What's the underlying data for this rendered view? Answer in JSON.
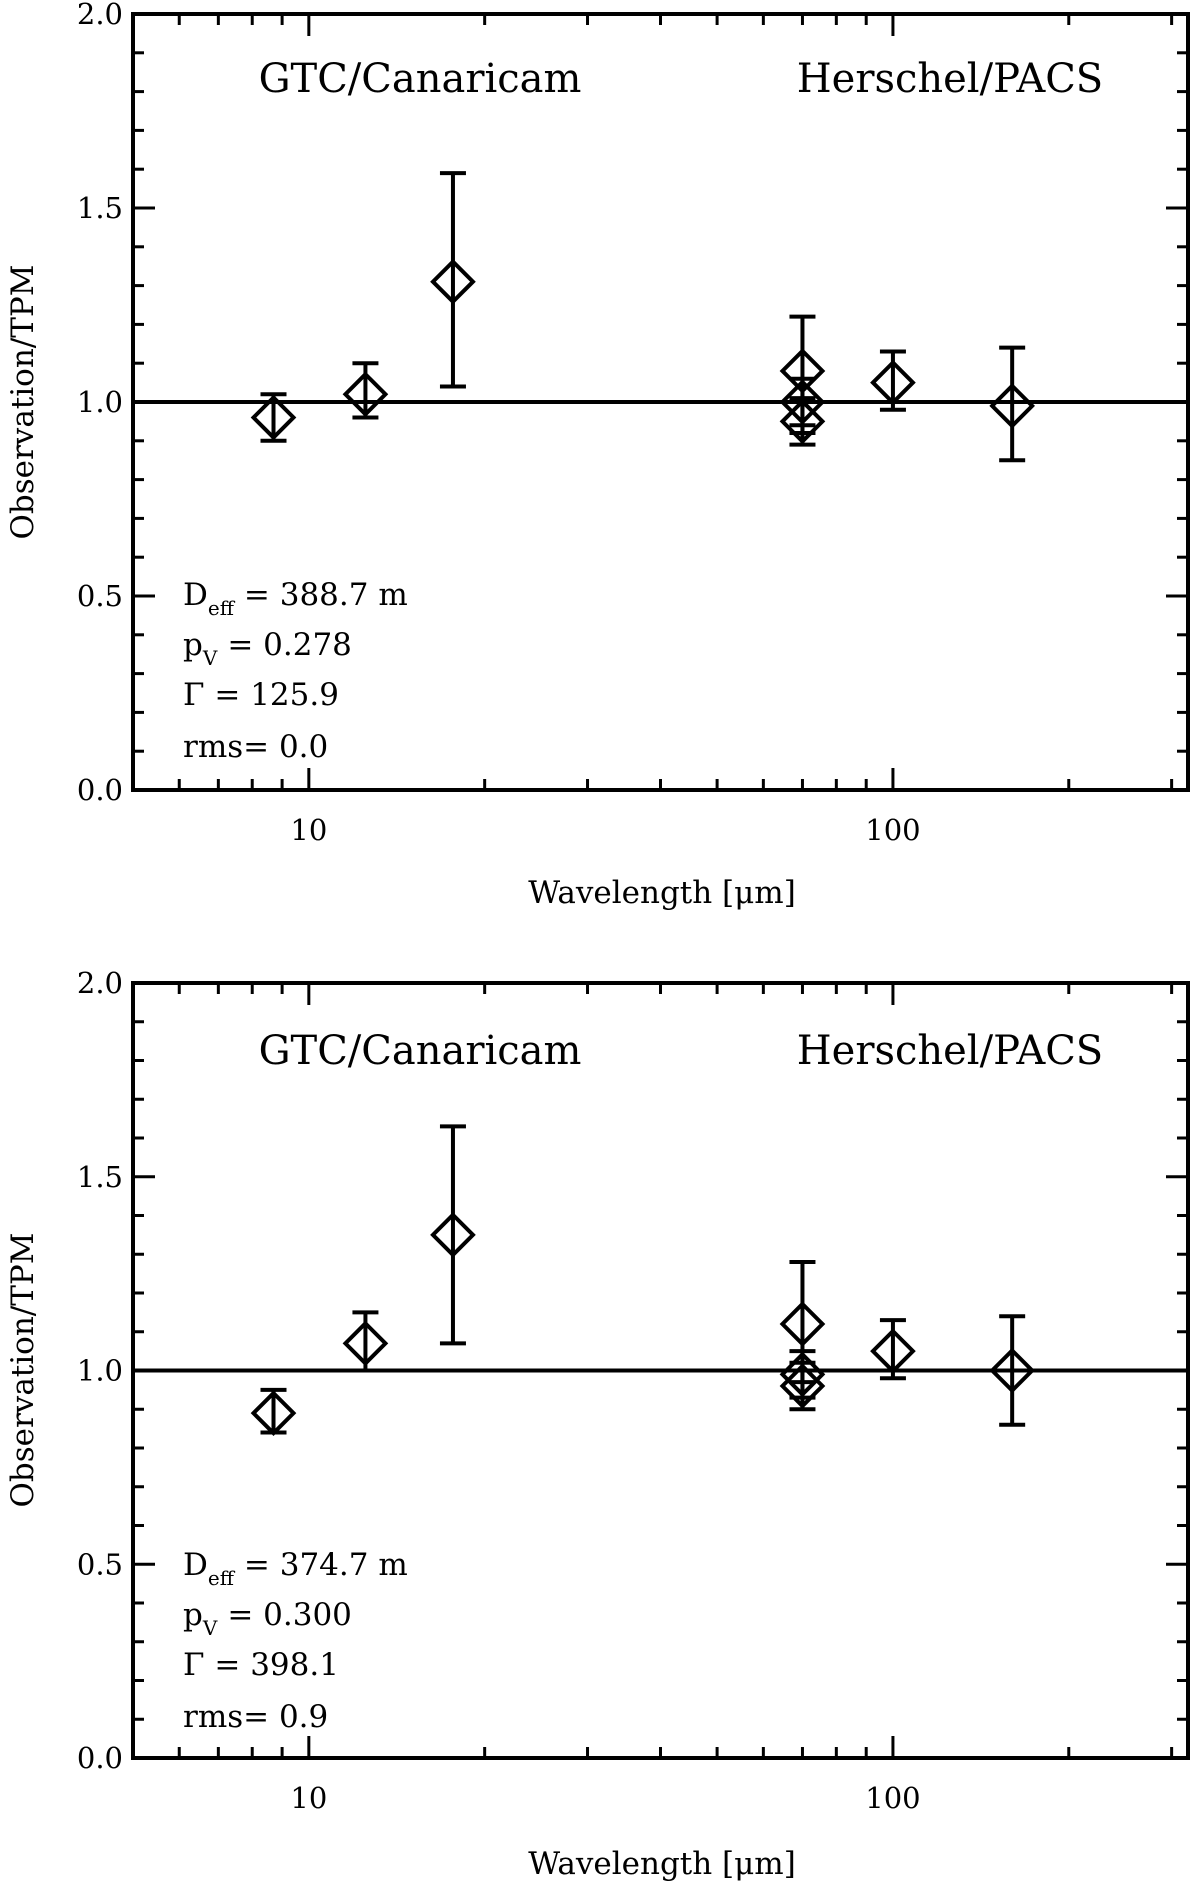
{
  "chart_data": [
    {
      "type": "scatter",
      "xscale": "log",
      "xlim": [
        5,
        320
      ],
      "ylim": [
        0.0,
        2.0
      ],
      "xlabel": "Wavelength [μm]",
      "ylabel": "Observation/TPM",
      "xticks": [
        10,
        100
      ],
      "xtick_labels": [
        "10",
        "100"
      ],
      "yticks": [
        0.0,
        0.5,
        1.0,
        1.5,
        2.0
      ],
      "ytick_labels": [
        "0.0",
        "0.5",
        "1.0",
        "1.5",
        "2.0"
      ],
      "reference_line": 1.0,
      "annotations": [
        "GTC/Canaricam",
        "Herschel/PACS"
      ],
      "params": {
        "d_eff": "= 388.7 m",
        "p_v": "= 0.278",
        "gamma": "Γ = 125.9",
        "rms": "rms= 0.0"
      },
      "series": [
        {
          "name": "Observation/TPM",
          "marker": "diamond",
          "points": [
            {
              "x": 8.7,
              "y": 0.96,
              "ylo": 0.9,
              "yhi": 1.02
            },
            {
              "x": 12.5,
              "y": 1.02,
              "ylo": 0.96,
              "yhi": 1.1
            },
            {
              "x": 17.65,
              "y": 1.31,
              "ylo": 1.04,
              "yhi": 1.59
            },
            {
              "x": 70,
              "y": 1.08,
              "ylo": 0.94,
              "yhi": 1.22
            },
            {
              "x": 70,
              "y": 1.0,
              "ylo": 0.92,
              "yhi": 1.06
            },
            {
              "x": 70,
              "y": 0.95,
              "ylo": 0.89,
              "yhi": 1.01
            },
            {
              "x": 100,
              "y": 1.05,
              "ylo": 0.98,
              "yhi": 1.13
            },
            {
              "x": 160,
              "y": 0.99,
              "ylo": 0.85,
              "yhi": 1.14
            }
          ]
        }
      ]
    },
    {
      "type": "scatter",
      "xscale": "log",
      "xlim": [
        5,
        320
      ],
      "ylim": [
        0.0,
        2.0
      ],
      "xlabel": "Wavelength [μm]",
      "ylabel": "Observation/TPM",
      "xticks": [
        10,
        100
      ],
      "xtick_labels": [
        "10",
        "100"
      ],
      "yticks": [
        0.0,
        0.5,
        1.0,
        1.5,
        2.0
      ],
      "ytick_labels": [
        "0.0",
        "0.5",
        "1.0",
        "1.5",
        "2.0"
      ],
      "reference_line": 1.0,
      "annotations": [
        "GTC/Canaricam",
        "Herschel/PACS"
      ],
      "params": {
        "d_eff": "= 374.7 m",
        "p_v": "= 0.300",
        "gamma": "Γ = 398.1",
        "rms": "rms= 0.9"
      },
      "series": [
        {
          "name": "Observation/TPM",
          "marker": "diamond",
          "points": [
            {
              "x": 8.7,
              "y": 0.89,
              "ylo": 0.84,
              "yhi": 0.95
            },
            {
              "x": 12.5,
              "y": 1.07,
              "ylo": 1.0,
              "yhi": 1.15
            },
            {
              "x": 17.65,
              "y": 1.35,
              "ylo": 1.07,
              "yhi": 1.63
            },
            {
              "x": 70,
              "y": 1.12,
              "ylo": 0.97,
              "yhi": 1.28
            },
            {
              "x": 70,
              "y": 0.99,
              "ylo": 0.93,
              "yhi": 1.05
            },
            {
              "x": 70,
              "y": 0.96,
              "ylo": 0.9,
              "yhi": 1.02
            },
            {
              "x": 100,
              "y": 1.05,
              "ylo": 0.98,
              "yhi": 1.13
            },
            {
              "x": 160,
              "y": 1.0,
              "ylo": 0.86,
              "yhi": 1.14
            }
          ]
        }
      ]
    }
  ],
  "labels": {
    "d_symbol": "D",
    "d_subscript": "eff",
    "p_symbol": "p",
    "p_subscript": "V"
  }
}
